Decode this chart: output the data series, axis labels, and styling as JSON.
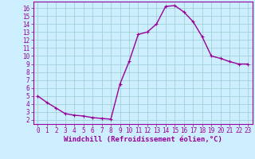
{
  "x": [
    0,
    1,
    2,
    3,
    4,
    5,
    6,
    7,
    8,
    9,
    10,
    11,
    12,
    13,
    14,
    15,
    16,
    17,
    18,
    19,
    20,
    21,
    22,
    23
  ],
  "y": [
    5.0,
    4.2,
    3.5,
    2.8,
    2.6,
    2.5,
    2.3,
    2.2,
    2.1,
    6.5,
    9.3,
    12.7,
    13.0,
    14.0,
    16.2,
    16.3,
    15.5,
    14.3,
    12.4,
    10.0,
    9.7,
    9.3,
    9.0,
    9.0
  ],
  "bg_color": "#cceeff",
  "line_color": "#990099",
  "marker_color": "#990099",
  "grid_color": "#99cccc",
  "xlabel": "Windchill (Refroidissement éolien,°C)",
  "ylabel": "",
  "ylim": [
    1.5,
    16.8
  ],
  "xlim": [
    -0.5,
    23.5
  ],
  "yticks": [
    2,
    3,
    4,
    5,
    6,
    7,
    8,
    9,
    10,
    11,
    12,
    13,
    14,
    15,
    16
  ],
  "xticks": [
    0,
    1,
    2,
    3,
    4,
    5,
    6,
    7,
    8,
    9,
    10,
    11,
    12,
    13,
    14,
    15,
    16,
    17,
    18,
    19,
    20,
    21,
    22,
    23
  ],
  "tick_color": "#990099",
  "tick_label_color": "#990099",
  "spine_color": "#990099",
  "font_size": 5.5,
  "xlabel_fontsize": 6.5,
  "line_width": 1.0,
  "marker_size": 2.5
}
